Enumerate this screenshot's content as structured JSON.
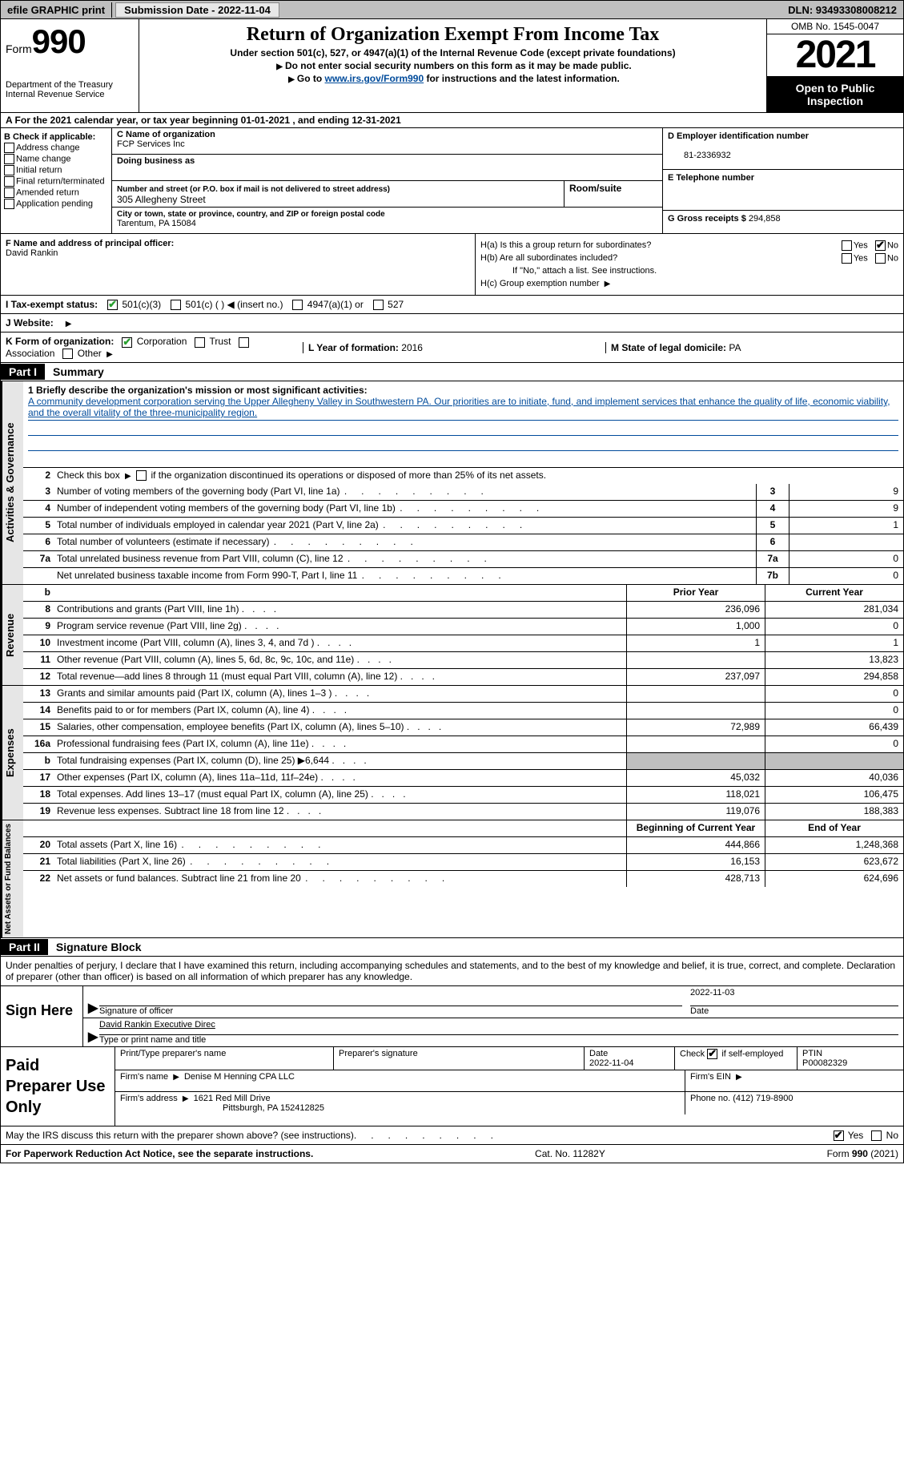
{
  "topbar": {
    "efile": "efile GRAPHIC print",
    "submission": "Submission Date - 2022-11-04",
    "dln": "DLN: 93493308008212"
  },
  "header": {
    "form_label": "Form",
    "form_number": "990",
    "title": "Return of Organization Exempt From Income Tax",
    "subtitle1": "Under section 501(c), 527, or 4947(a)(1) of the Internal Revenue Code (except private foundations)",
    "subtitle2": "Do not enter social security numbers on this form as it may be made public.",
    "subtitle3_prefix": "Go to ",
    "subtitle3_link": "www.irs.gov/Form990",
    "subtitle3_suffix": " for instructions and the latest information.",
    "dept": "Department of the Treasury\nInternal Revenue Service",
    "omb": "OMB No. 1545-0047",
    "year": "2021",
    "inspection": "Open to Public Inspection"
  },
  "rowA": "A  For the 2021 calendar year, or tax year beginning 01-01-2021    , and ending 12-31-2021",
  "colB": {
    "title": "B Check if applicable:",
    "items": [
      "Address change",
      "Name change",
      "Initial return",
      "Final return/terminated",
      "Amended return",
      "Application pending"
    ]
  },
  "colC": {
    "name_label": "C Name of organization",
    "name": "FCP Services Inc",
    "dba_label": "Doing business as",
    "dba": "",
    "addr_label": "Number and street (or P.O. box if mail is not delivered to street address)",
    "addr": "305 Allegheny Street",
    "room_label": "Room/suite",
    "city_label": "City or town, state or province, country, and ZIP or foreign postal code",
    "city": "Tarentum, PA  15084"
  },
  "colDE": {
    "d_label": "D Employer identification number",
    "ein": "81-2336932",
    "e_label": "E Telephone number",
    "phone": "",
    "g_label": "G Gross receipts $",
    "gross": "294,858"
  },
  "colF": {
    "label": "F  Name and address of principal officer:",
    "name": "David Rankin"
  },
  "colH": {
    "h_a": "H(a)  Is this a group return for subordinates?",
    "h_b": "H(b)  Are all subordinates included?",
    "h_b_note": "If \"No,\" attach a list. See instructions.",
    "h_c": "H(c)  Group exemption number",
    "yes": "Yes",
    "no": "No"
  },
  "taxStatus": {
    "label": "I    Tax-exempt status:",
    "opts": [
      "501(c)(3)",
      "501(c) (  ) ◀ (insert no.)",
      "4947(a)(1) or",
      "527"
    ]
  },
  "website": {
    "label": "J    Website:"
  },
  "korg": {
    "k_label": "K Form of organization:",
    "opts": [
      "Corporation",
      "Trust",
      "Association",
      "Other"
    ],
    "l_label": "L Year of formation:",
    "l_val": "2016",
    "m_label": "M State of legal domicile:",
    "m_val": "PA"
  },
  "part1": {
    "header": "Part I",
    "title": "Summary",
    "line1_label": "1  Briefly describe the organization's mission or most significant activities:",
    "mission": "A community development corporation serving the Upper Allegheny Valley in Southwestern PA. Our priorities are to initiate, fund, and implement services that enhance the quality of life, economic viability, and the overall vitality of the three-municipality region.",
    "line2": "Check this box ▶       if the organization discontinued its operations or disposed of more than 25% of its net assets.",
    "side_activities": "Activities & Governance",
    "side_revenue": "Revenue",
    "side_expenses": "Expenses",
    "side_netassets": "Net Assets or Fund Balances",
    "prior_year": "Prior Year",
    "current_year": "Current Year",
    "begin_year": "Beginning of Current Year",
    "end_year": "End of Year",
    "lines_gov": [
      {
        "n": "3",
        "desc": "Number of voting members of the governing body (Part VI, line 1a)",
        "box": "3",
        "val": "9"
      },
      {
        "n": "4",
        "desc": "Number of independent voting members of the governing body (Part VI, line 1b)",
        "box": "4",
        "val": "9"
      },
      {
        "n": "5",
        "desc": "Total number of individuals employed in calendar year 2021 (Part V, line 2a)",
        "box": "5",
        "val": "1"
      },
      {
        "n": "6",
        "desc": "Total number of volunteers (estimate if necessary)",
        "box": "6",
        "val": ""
      },
      {
        "n": "7a",
        "desc": "Total unrelated business revenue from Part VIII, column (C), line 12",
        "box": "7a",
        "val": "0"
      },
      {
        "n": "",
        "desc": "Net unrelated business taxable income from Form 990-T, Part I, line 11",
        "box": "7b",
        "val": "0"
      }
    ],
    "lines_rev": [
      {
        "n": "8",
        "desc": "Contributions and grants (Part VIII, line 1h)",
        "prior": "236,096",
        "curr": "281,034"
      },
      {
        "n": "9",
        "desc": "Program service revenue (Part VIII, line 2g)",
        "prior": "1,000",
        "curr": "0"
      },
      {
        "n": "10",
        "desc": "Investment income (Part VIII, column (A), lines 3, 4, and 7d )",
        "prior": "1",
        "curr": "1"
      },
      {
        "n": "11",
        "desc": "Other revenue (Part VIII, column (A), lines 5, 6d, 8c, 9c, 10c, and 11e)",
        "prior": "",
        "curr": "13,823"
      },
      {
        "n": "12",
        "desc": "Total revenue—add lines 8 through 11 (must equal Part VIII, column (A), line 12)",
        "prior": "237,097",
        "curr": "294,858"
      }
    ],
    "lines_exp": [
      {
        "n": "13",
        "desc": "Grants and similar amounts paid (Part IX, column (A), lines 1–3 )",
        "prior": "",
        "curr": "0"
      },
      {
        "n": "14",
        "desc": "Benefits paid to or for members (Part IX, column (A), line 4)",
        "prior": "",
        "curr": "0"
      },
      {
        "n": "15",
        "desc": "Salaries, other compensation, employee benefits (Part IX, column (A), lines 5–10)",
        "prior": "72,989",
        "curr": "66,439"
      },
      {
        "n": "16a",
        "desc": "Professional fundraising fees (Part IX, column (A), line 11e)",
        "prior": "",
        "curr": "0"
      },
      {
        "n": "b",
        "desc": "Total fundraising expenses (Part IX, column (D), line 25) ▶6,644",
        "prior": "shaded",
        "curr": "shaded"
      },
      {
        "n": "17",
        "desc": "Other expenses (Part IX, column (A), lines 11a–11d, 11f–24e)",
        "prior": "45,032",
        "curr": "40,036"
      },
      {
        "n": "18",
        "desc": "Total expenses. Add lines 13–17 (must equal Part IX, column (A), line 25)",
        "prior": "118,021",
        "curr": "106,475"
      },
      {
        "n": "19",
        "desc": "Revenue less expenses. Subtract line 18 from line 12",
        "prior": "119,076",
        "curr": "188,383"
      }
    ],
    "lines_net": [
      {
        "n": "20",
        "desc": "Total assets (Part X, line 16)",
        "prior": "444,866",
        "curr": "1,248,368"
      },
      {
        "n": "21",
        "desc": "Total liabilities (Part X, line 26)",
        "prior": "16,153",
        "curr": "623,672"
      },
      {
        "n": "22",
        "desc": "Net assets or fund balances. Subtract line 21 from line 20",
        "prior": "428,713",
        "curr": "624,696"
      }
    ]
  },
  "part2": {
    "header": "Part II",
    "title": "Signature Block",
    "perjury": "Under penalties of perjury, I declare that I have examined this return, including accompanying schedules and statements, and to the best of my knowledge and belief, it is true, correct, and complete. Declaration of preparer (other than officer) is based on all information of which preparer has any knowledge.",
    "sign_here": "Sign Here",
    "sig_officer": "Signature of officer",
    "sig_date": "2022-11-03",
    "sig_date_label": "Date",
    "sig_name": "David Rankin  Executive Direc",
    "sig_name_label": "Type or print name and title",
    "paid_label": "Paid Preparer Use Only",
    "prep_name_label": "Print/Type preparer's name",
    "prep_sig_label": "Preparer's signature",
    "prep_date_label": "Date",
    "prep_date": "2022-11-04",
    "prep_check_label": "Check          if self-employed",
    "ptin_label": "PTIN",
    "ptin": "P00082329",
    "firm_name_label": "Firm's name    ",
    "firm_name": "Denise M Henning CPA LLC",
    "firm_ein_label": "Firm's EIN",
    "firm_addr_label": "Firm's address",
    "firm_addr1": "1621 Red Mill Drive",
    "firm_addr2": "Pittsburgh, PA  152412825",
    "firm_phone_label": "Phone no.",
    "firm_phone": "(412) 719-8900"
  },
  "discuss": "May the IRS discuss this return with the preparer shown above? (see instructions)",
  "footer": {
    "left": "For Paperwork Reduction Act Notice, see the separate instructions.",
    "mid": "Cat. No. 11282Y",
    "right": "Form 990 (2021)"
  }
}
